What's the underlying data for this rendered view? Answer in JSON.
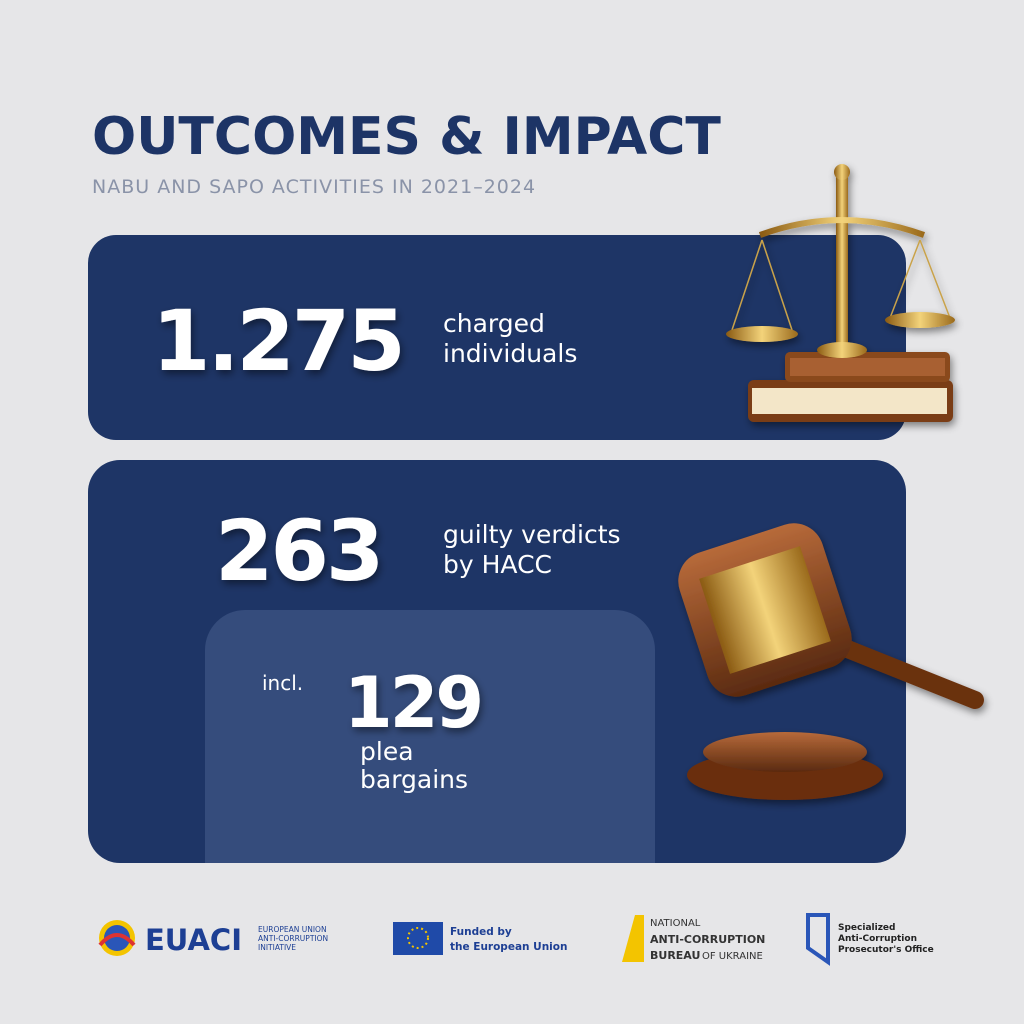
{
  "header": {
    "title": "OUTCOMES & IMPACT",
    "subtitle": "NABU AND SAPO ACTIVITIES IN 2021–2024"
  },
  "cards": [
    {
      "number": "1.275",
      "label": [
        "charged",
        "individuals"
      ]
    },
    {
      "number": "263",
      "label": [
        "guilty verdicts",
        "by HACC"
      ],
      "sub": {
        "prefix": "incl.",
        "number": "129",
        "label": [
          "plea",
          "bargains"
        ]
      }
    }
  ],
  "footer": {
    "euaci": {
      "name": "EUACI",
      "lines": [
        "EUROPEAN UNION",
        "ANTI-CORRUPTION",
        "INITIATIVE"
      ]
    },
    "eu": {
      "lines": [
        "Funded by",
        "the European Union"
      ]
    },
    "nabu": {
      "lines": [
        "NATIONAL",
        "ANTI-CORRUPTION",
        "BUREAU",
        "OF UKRAINE"
      ]
    },
    "sapo": {
      "lines": [
        "Specialized",
        "Anti-Corruption",
        "Prosecutor's Office"
      ]
    }
  }
}
